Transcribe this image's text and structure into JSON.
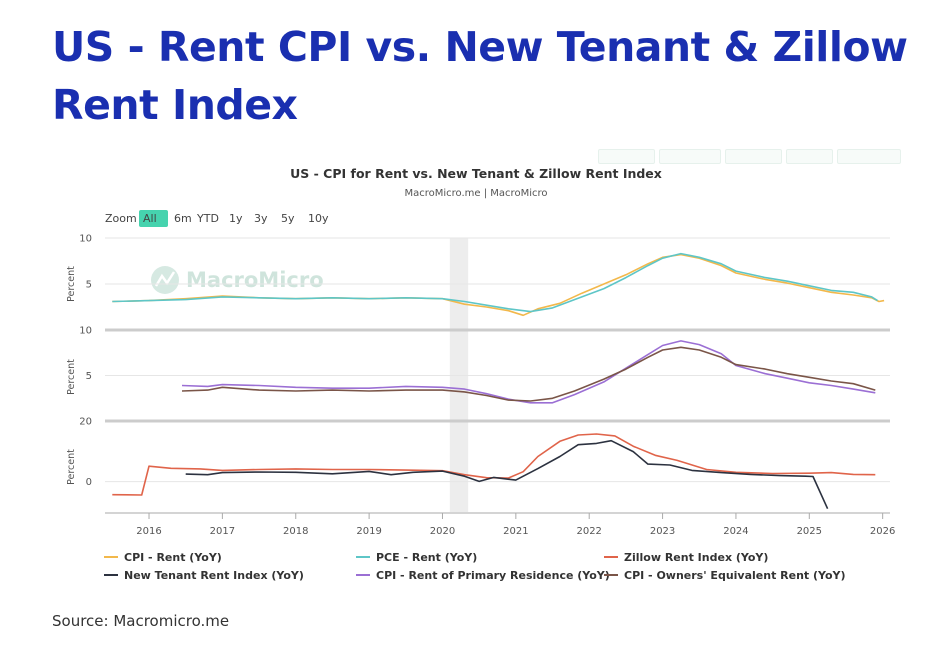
{
  "page": {
    "title": "US - Rent CPI vs. New Tenant & Zillow Rent Index",
    "source": "Source: Macromicro.me"
  },
  "chart_data": {
    "type": "line",
    "title": "US - CPI for Rent vs. New Tenant & Zillow Rent Index",
    "subtitle": "MacroMicro.me | MacroMicro",
    "watermark": "MacroMicro",
    "zoom": {
      "label": "Zoom",
      "options": [
        "All",
        "6m",
        "YTD",
        "1y",
        "3y",
        "5y",
        "10y"
      ],
      "selected": "All"
    },
    "x_axis": {
      "range": [
        2015.4,
        2026.1
      ],
      "ticks": [
        "2016",
        "2017",
        "2018",
        "2019",
        "2020",
        "2021",
        "2022",
        "2023",
        "2024",
        "2025",
        "2026"
      ]
    },
    "shaded_period": [
      2020.1,
      2020.35
    ],
    "panels": [
      {
        "ylabel": "Percent",
        "ylim": [
          0,
          10
        ],
        "yticks": [
          "10",
          "5"
        ],
        "series": [
          {
            "name": "CPI - Rent (YoY)",
            "color": "#f2b84b",
            "points": [
              [
                2015.5,
                3.1
              ],
              [
                2016.0,
                3.2
              ],
              [
                2016.5,
                3.4
              ],
              [
                2017.0,
                3.7
              ],
              [
                2017.5,
                3.5
              ],
              [
                2018.0,
                3.4
              ],
              [
                2018.5,
                3.5
              ],
              [
                2019.0,
                3.4
              ],
              [
                2019.5,
                3.5
              ],
              [
                2020.0,
                3.4
              ],
              [
                2020.3,
                2.8
              ],
              [
                2020.6,
                2.5
              ],
              [
                2020.9,
                2.1
              ],
              [
                2021.1,
                1.6
              ],
              [
                2021.3,
                2.3
              ],
              [
                2021.6,
                2.9
              ],
              [
                2021.9,
                4.0
              ],
              [
                2022.2,
                5.0
              ],
              [
                2022.5,
                6.0
              ],
              [
                2022.8,
                7.2
              ],
              [
                2023.0,
                7.9
              ],
              [
                2023.25,
                8.2
              ],
              [
                2023.5,
                7.8
              ],
              [
                2023.8,
                7.0
              ],
              [
                2024.0,
                6.2
              ],
              [
                2024.4,
                5.5
              ],
              [
                2024.7,
                5.1
              ],
              [
                2025.0,
                4.6
              ],
              [
                2025.3,
                4.1
              ],
              [
                2025.6,
                3.8
              ],
              [
                2025.85,
                3.5
              ],
              [
                2025.95,
                3.1
              ],
              [
                2026.02,
                3.2
              ]
            ]
          },
          {
            "name": "PCE - Rent (YoY)",
            "color": "#5ec6c7",
            "points": [
              [
                2015.5,
                3.1
              ],
              [
                2016.0,
                3.2
              ],
              [
                2016.5,
                3.3
              ],
              [
                2017.0,
                3.6
              ],
              [
                2017.5,
                3.5
              ],
              [
                2018.0,
                3.4
              ],
              [
                2018.5,
                3.5
              ],
              [
                2019.0,
                3.4
              ],
              [
                2019.5,
                3.5
              ],
              [
                2020.0,
                3.4
              ],
              [
                2020.3,
                3.1
              ],
              [
                2020.6,
                2.7
              ],
              [
                2020.9,
                2.3
              ],
              [
                2021.2,
                2.0
              ],
              [
                2021.5,
                2.4
              ],
              [
                2021.8,
                3.3
              ],
              [
                2022.2,
                4.5
              ],
              [
                2022.5,
                5.7
              ],
              [
                2022.8,
                7.0
              ],
              [
                2023.0,
                7.8
              ],
              [
                2023.25,
                8.3
              ],
              [
                2023.5,
                7.9
              ],
              [
                2023.8,
                7.2
              ],
              [
                2024.0,
                6.4
              ],
              [
                2024.4,
                5.7
              ],
              [
                2024.7,
                5.3
              ],
              [
                2025.0,
                4.8
              ],
              [
                2025.3,
                4.3
              ],
              [
                2025.6,
                4.1
              ],
              [
                2025.85,
                3.6
              ],
              [
                2025.93,
                3.2
              ]
            ]
          }
        ]
      },
      {
        "ylabel": "Percent",
        "ylim": [
          0,
          10
        ],
        "yticks": [
          "10",
          "5"
        ],
        "series": [
          {
            "name": "CPI - Rent of Primary Residence (YoY)",
            "color": "#9b6fd4",
            "points": [
              [
                2016.45,
                3.9
              ],
              [
                2016.8,
                3.8
              ],
              [
                2017.0,
                4.0
              ],
              [
                2017.5,
                3.9
              ],
              [
                2018.0,
                3.7
              ],
              [
                2018.5,
                3.6
              ],
              [
                2019.0,
                3.6
              ],
              [
                2019.5,
                3.8
              ],
              [
                2020.0,
                3.7
              ],
              [
                2020.3,
                3.5
              ],
              [
                2020.6,
                3.0
              ],
              [
                2020.9,
                2.4
              ],
              [
                2021.2,
                2.0
              ],
              [
                2021.5,
                2.0
              ],
              [
                2021.8,
                2.9
              ],
              [
                2022.2,
                4.3
              ],
              [
                2022.5,
                5.8
              ],
              [
                2022.8,
                7.3
              ],
              [
                2023.0,
                8.3
              ],
              [
                2023.25,
                8.8
              ],
              [
                2023.5,
                8.4
              ],
              [
                2023.8,
                7.4
              ],
              [
                2024.0,
                6.1
              ],
              [
                2024.4,
                5.2
              ],
              [
                2024.7,
                4.7
              ],
              [
                2025.0,
                4.2
              ],
              [
                2025.3,
                3.9
              ],
              [
                2025.6,
                3.5
              ],
              [
                2025.9,
                3.1
              ]
            ]
          },
          {
            "name": "CPI - Owners' Equivalent Rent (YoY)",
            "color": "#7a5548",
            "points": [
              [
                2016.45,
                3.3
              ],
              [
                2016.8,
                3.4
              ],
              [
                2017.0,
                3.7
              ],
              [
                2017.5,
                3.4
              ],
              [
                2018.0,
                3.3
              ],
              [
                2018.5,
                3.4
              ],
              [
                2019.0,
                3.3
              ],
              [
                2019.5,
                3.4
              ],
              [
                2020.0,
                3.4
              ],
              [
                2020.3,
                3.2
              ],
              [
                2020.6,
                2.8
              ],
              [
                2020.9,
                2.3
              ],
              [
                2021.2,
                2.2
              ],
              [
                2021.5,
                2.5
              ],
              [
                2021.8,
                3.3
              ],
              [
                2022.2,
                4.6
              ],
              [
                2022.5,
                5.7
              ],
              [
                2022.8,
                7.0
              ],
              [
                2023.0,
                7.8
              ],
              [
                2023.25,
                8.1
              ],
              [
                2023.5,
                7.8
              ],
              [
                2023.8,
                7.0
              ],
              [
                2024.0,
                6.2
              ],
              [
                2024.4,
                5.7
              ],
              [
                2024.7,
                5.2
              ],
              [
                2025.0,
                4.8
              ],
              [
                2025.3,
                4.4
              ],
              [
                2025.6,
                4.1
              ],
              [
                2025.9,
                3.4
              ]
            ]
          }
        ]
      },
      {
        "ylabel": "Percent",
        "ylim": [
          -10,
          20
        ],
        "yticks": [
          "20",
          "0"
        ],
        "series": [
          {
            "name": "Zillow Rent Index (YoY)",
            "color": "#e0644a",
            "points": [
              [
                2015.5,
                -4.3
              ],
              [
                2015.9,
                -4.4
              ],
              [
                2016.0,
                5.1
              ],
              [
                2016.3,
                4.4
              ],
              [
                2016.7,
                4.2
              ],
              [
                2017.0,
                3.7
              ],
              [
                2017.5,
                4.0
              ],
              [
                2018.0,
                4.2
              ],
              [
                2018.5,
                4.0
              ],
              [
                2019.0,
                4.0
              ],
              [
                2019.5,
                3.8
              ],
              [
                2020.0,
                3.6
              ],
              [
                2020.3,
                2.3
              ],
              [
                2020.6,
                1.3
              ],
              [
                2020.9,
                1.2
              ],
              [
                2021.1,
                3.3
              ],
              [
                2021.3,
                8.3
              ],
              [
                2021.6,
                13.3
              ],
              [
                2021.85,
                15.4
              ],
              [
                2022.1,
                15.7
              ],
              [
                2022.35,
                15.1
              ],
              [
                2022.6,
                11.7
              ],
              [
                2022.9,
                8.7
              ],
              [
                2023.2,
                7.0
              ],
              [
                2023.6,
                4.0
              ],
              [
                2024.0,
                3.1
              ],
              [
                2024.5,
                2.7
              ],
              [
                2025.0,
                2.8
              ],
              [
                2025.3,
                3.0
              ],
              [
                2025.6,
                2.4
              ],
              [
                2025.9,
                2.3
              ]
            ]
          },
          {
            "name": "New Tenant Rent Index (YoY)",
            "color": "#2c3240",
            "points": [
              [
                2016.5,
                2.5
              ],
              [
                2016.8,
                2.3
              ],
              [
                2017.0,
                3.0
              ],
              [
                2017.5,
                3.2
              ],
              [
                2018.0,
                3.1
              ],
              [
                2018.5,
                2.6
              ],
              [
                2019.0,
                3.4
              ],
              [
                2019.3,
                2.3
              ],
              [
                2019.6,
                3.1
              ],
              [
                2020.0,
                3.5
              ],
              [
                2020.3,
                1.8
              ],
              [
                2020.5,
                0.1
              ],
              [
                2020.7,
                1.4
              ],
              [
                2021.0,
                0.5
              ],
              [
                2021.3,
                4.3
              ],
              [
                2021.6,
                8.3
              ],
              [
                2021.85,
                12.2
              ],
              [
                2022.1,
                12.6
              ],
              [
                2022.3,
                13.5
              ],
              [
                2022.6,
                9.9
              ],
              [
                2022.8,
                5.8
              ],
              [
                2023.1,
                5.5
              ],
              [
                2023.4,
                3.7
              ],
              [
                2023.8,
                3.0
              ],
              [
                2024.2,
                2.4
              ],
              [
                2024.6,
                2.0
              ],
              [
                2024.95,
                1.8
              ],
              [
                2025.05,
                1.7
              ],
              [
                2025.25,
                -8.9
              ]
            ]
          }
        ]
      }
    ],
    "legend": {
      "placement": "bottom",
      "items": [
        {
          "name": "CPI - Rent (YoY)",
          "color": "#f2b84b"
        },
        {
          "name": "PCE - Rent (YoY)",
          "color": "#5ec6c7"
        },
        {
          "name": "Zillow Rent Index (YoY)",
          "color": "#e0644a"
        },
        {
          "name": "New Tenant Rent Index (YoY)",
          "color": "#2c3240"
        },
        {
          "name": "CPI - Rent of Primary Residence (YoY)",
          "color": "#9b6fd4"
        },
        {
          "name": "CPI - Owners' Equivalent Rent (YoY)",
          "color": "#7a5548"
        }
      ]
    }
  }
}
